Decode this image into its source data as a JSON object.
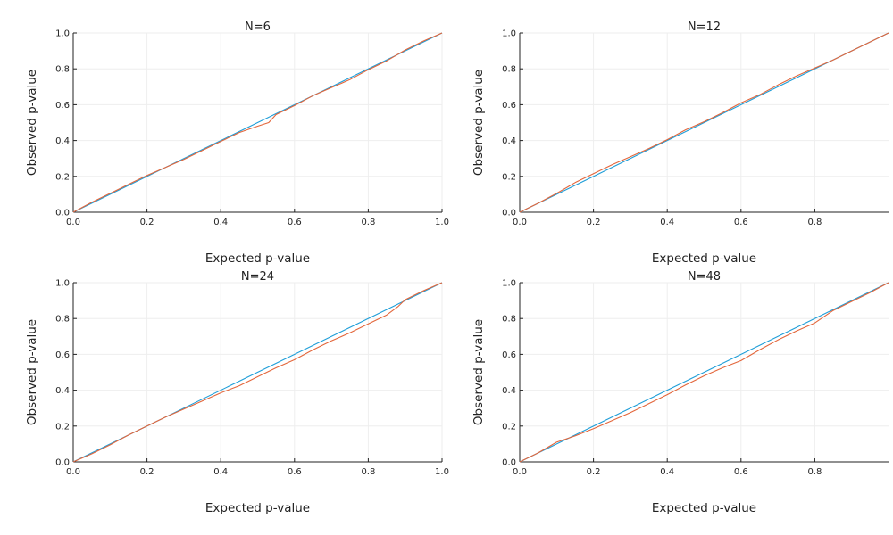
{
  "chart_data": [
    {
      "type": "line",
      "title": "N=6",
      "xlabel": "Expected p-value",
      "ylabel": "Observed p-value",
      "xlim": [
        0,
        1.0
      ],
      "ylim": [
        0,
        1.0
      ],
      "xticks": [
        "0.0",
        "0.2",
        "0.4",
        "0.6",
        "0.8",
        "1.0"
      ],
      "yticks": [
        "0.0",
        "0.2",
        "0.4",
        "0.6",
        "0.8",
        "1.0"
      ],
      "grid": true,
      "series": [
        {
          "color": "#1f9ed8",
          "x": [
            0,
            1.0
          ],
          "y": [
            0,
            1.0
          ]
        },
        {
          "color": "#e3663b",
          "x": [
            0,
            0.05,
            0.1,
            0.15,
            0.2,
            0.25,
            0.3,
            0.35,
            0.4,
            0.45,
            0.5,
            0.53,
            0.55,
            0.6,
            0.65,
            0.7,
            0.75,
            0.8,
            0.85,
            0.9,
            0.95,
            1.0
          ],
          "y": [
            0,
            0.055,
            0.105,
            0.155,
            0.205,
            0.25,
            0.295,
            0.345,
            0.395,
            0.445,
            0.48,
            0.5,
            0.545,
            0.595,
            0.65,
            0.695,
            0.74,
            0.795,
            0.845,
            0.905,
            0.955,
            1.0
          ]
        }
      ]
    },
    {
      "type": "line",
      "title": "N=12",
      "xlabel": "Expected p-value",
      "ylabel": "Observed p-value",
      "xlim": [
        0,
        1.0
      ],
      "ylim": [
        0,
        1.0
      ],
      "xticks": [
        "0.0",
        "0.2",
        "0.4",
        "0.6",
        "0.8"
      ],
      "yticks": [
        "0.0",
        "0.2",
        "0.4",
        "0.6",
        "0.8",
        "1.0"
      ],
      "grid": true,
      "series": [
        {
          "color": "#1f9ed8",
          "x": [
            0,
            1.0
          ],
          "y": [
            0,
            1.0
          ]
        },
        {
          "color": "#e3663b",
          "x": [
            0,
            0.05,
            0.1,
            0.15,
            0.2,
            0.25,
            0.3,
            0.35,
            0.4,
            0.45,
            0.5,
            0.55,
            0.6,
            0.65,
            0.7,
            0.75,
            0.8,
            0.85,
            0.9,
            0.95,
            1.0
          ],
          "y": [
            0,
            0.05,
            0.105,
            0.165,
            0.215,
            0.265,
            0.31,
            0.355,
            0.405,
            0.46,
            0.505,
            0.555,
            0.61,
            0.655,
            0.71,
            0.76,
            0.805,
            0.85,
            0.9,
            0.95,
            1.0
          ]
        }
      ]
    },
    {
      "type": "line",
      "title": "N=24",
      "xlabel": "Expected p-value",
      "ylabel": "Observed p-value",
      "xlim": [
        0,
        1.0
      ],
      "ylim": [
        0,
        1.0
      ],
      "xticks": [
        "0.0",
        "0.2",
        "0.4",
        "0.6",
        "0.8",
        "1.0"
      ],
      "yticks": [
        "0.0",
        "0.2",
        "0.4",
        "0.6",
        "0.8",
        "1.0"
      ],
      "grid": true,
      "series": [
        {
          "color": "#1f9ed8",
          "x": [
            0,
            1.0
          ],
          "y": [
            0,
            1.0
          ]
        },
        {
          "color": "#e3663b",
          "x": [
            0,
            0.05,
            0.1,
            0.15,
            0.2,
            0.25,
            0.3,
            0.35,
            0.4,
            0.45,
            0.5,
            0.55,
            0.6,
            0.65,
            0.7,
            0.75,
            0.8,
            0.85,
            0.88,
            0.9,
            0.95,
            1.0
          ],
          "y": [
            0,
            0.045,
            0.095,
            0.15,
            0.2,
            0.25,
            0.295,
            0.34,
            0.385,
            0.425,
            0.475,
            0.525,
            0.57,
            0.625,
            0.675,
            0.72,
            0.77,
            0.82,
            0.865,
            0.905,
            0.955,
            1.0
          ]
        }
      ]
    },
    {
      "type": "line",
      "title": "N=48",
      "xlabel": "Expected p-value",
      "ylabel": "Observed p-value",
      "xlim": [
        0,
        1.0
      ],
      "ylim": [
        0,
        1.0
      ],
      "xticks": [
        "0.0",
        "0.2",
        "0.4",
        "0.6",
        "0.8"
      ],
      "yticks": [
        "0.0",
        "0.2",
        "0.4",
        "0.6",
        "0.8",
        "1.0"
      ],
      "grid": true,
      "series": [
        {
          "color": "#1f9ed8",
          "x": [
            0,
            1.0
          ],
          "y": [
            0,
            1.0
          ]
        },
        {
          "color": "#e3663b",
          "x": [
            0,
            0.05,
            0.1,
            0.15,
            0.2,
            0.25,
            0.3,
            0.35,
            0.4,
            0.45,
            0.5,
            0.55,
            0.6,
            0.65,
            0.7,
            0.75,
            0.8,
            0.85,
            0.9,
            0.95,
            1.0
          ],
          "y": [
            0,
            0.05,
            0.11,
            0.145,
            0.185,
            0.23,
            0.275,
            0.325,
            0.375,
            0.43,
            0.48,
            0.525,
            0.565,
            0.625,
            0.68,
            0.73,
            0.775,
            0.845,
            0.895,
            0.945,
            1.0
          ]
        }
      ]
    }
  ]
}
